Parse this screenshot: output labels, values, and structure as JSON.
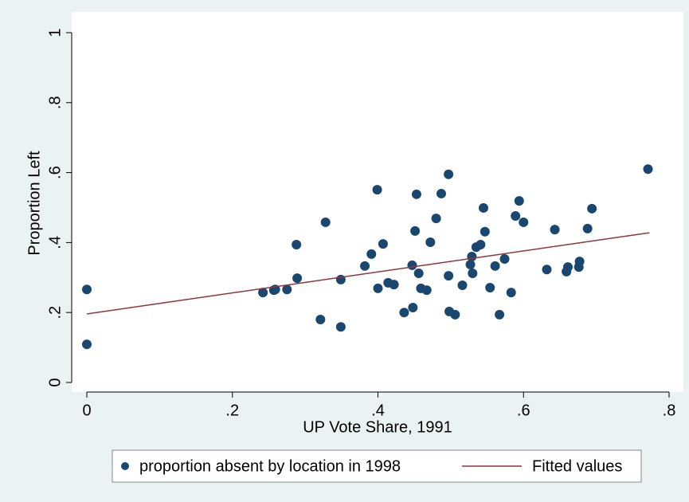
{
  "chart_data": {
    "type": "scatter",
    "x_label": "UP Vote Share, 1991",
    "y_label": "Proportion Left",
    "xlim": [
      0,
      0.8
    ],
    "ylim": [
      0,
      1
    ],
    "xticks": [
      0,
      {
        "value": 0.2,
        "label": ".2"
      },
      {
        "value": 0.4,
        "label": ".4"
      },
      {
        "value": 0.6,
        "label": ".6"
      },
      {
        "value": 0.8,
        "label": ".8"
      }
    ],
    "yticks": [
      0,
      {
        "value": 0.2,
        "label": ".2"
      },
      {
        "value": 0.4,
        "label": ".4"
      },
      {
        "value": 0.6,
        "label": ".6"
      },
      {
        "value": 0.8,
        "label": ".8"
      },
      1
    ],
    "grid": false,
    "legend": "bottom",
    "series": [
      {
        "name": "proportion absent by location in 1998",
        "type": "scatter",
        "color": "#1a476f",
        "x": [
          0,
          0,
          0.242,
          0.257,
          0.259,
          0.275,
          0.288,
          0.289,
          0.321,
          0.328,
          0.349,
          0.349,
          0.382,
          0.391,
          0.399,
          0.4,
          0.407,
          0.414,
          0.422,
          0.436,
          0.447,
          0.448,
          0.451,
          0.453,
          0.456,
          0.459,
          0.467,
          0.472,
          0.48,
          0.487,
          0.497,
          0.497,
          0.498,
          0.506,
          0.516,
          0.527,
          0.529,
          0.53,
          0.535,
          0.541,
          0.545,
          0.547,
          0.554,
          0.561,
          0.567,
          0.574,
          0.583,
          0.589,
          0.594,
          0.6,
          0.632,
          0.643,
          0.659,
          0.661,
          0.676,
          0.677,
          0.688,
          0.694,
          0.771
        ],
        "values": [
          0.266,
          0.109,
          0.257,
          0.264,
          0.266,
          0.266,
          0.394,
          0.298,
          0.18,
          0.458,
          0.294,
          0.159,
          0.333,
          0.367,
          0.551,
          0.269,
          0.396,
          0.285,
          0.28,
          0.2,
          0.335,
          0.214,
          0.433,
          0.538,
          0.312,
          0.269,
          0.264,
          0.401,
          0.469,
          0.54,
          0.595,
          0.305,
          0.203,
          0.194,
          0.278,
          0.337,
          0.36,
          0.312,
          0.387,
          0.394,
          0.499,
          0.431,
          0.271,
          0.333,
          0.194,
          0.353,
          0.257,
          0.476,
          0.519,
          0.458,
          0.323,
          0.437,
          0.317,
          0.33,
          0.33,
          0.346,
          0.44,
          0.497,
          0.61
        ]
      },
      {
        "name": "Fitted values",
        "type": "line",
        "color": "#90353b",
        "x": [
          0,
          0.773
        ],
        "values": [
          0.196,
          0.428
        ]
      }
    ]
  }
}
